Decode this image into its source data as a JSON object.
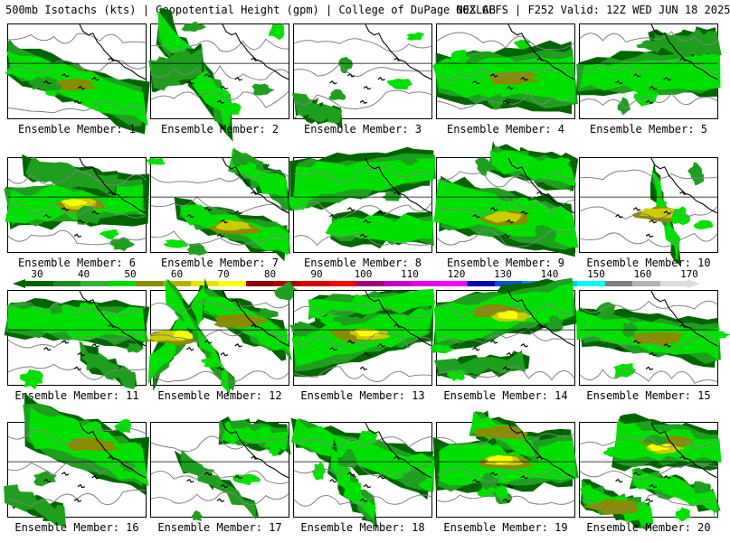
{
  "header": {
    "left": "500mb Isotachs (kts) | Geopotential Height (gpm) | College of DuPage NEXLAB",
    "right": "00Z GEFS | F252 Valid: 12Z WED JUN 18 2025"
  },
  "panels": [
    {
      "label": "Ensemble Member: 1",
      "member": 1
    },
    {
      "label": "Ensemble Member: 2",
      "member": 2
    },
    {
      "label": "Ensemble Member: 3",
      "member": 3
    },
    {
      "label": "Ensemble Member: 4",
      "member": 4
    },
    {
      "label": "Ensemble Member: 5",
      "member": 5
    },
    {
      "label": "Ensemble Member: 6",
      "member": 6
    },
    {
      "label": "Ensemble Member: 7",
      "member": 7
    },
    {
      "label": "Ensemble Member: 8",
      "member": 8
    },
    {
      "label": "Ensemble Member: 9",
      "member": 9
    },
    {
      "label": "Ensemble Member: 10",
      "member": 10
    },
    {
      "label": "Ensemble Member: 11",
      "member": 11
    },
    {
      "label": "Ensemble Member: 12",
      "member": 12
    },
    {
      "label": "Ensemble Member: 13",
      "member": 13
    },
    {
      "label": "Ensemble Member: 14",
      "member": 14
    },
    {
      "label": "Ensemble Member: 15",
      "member": 15
    },
    {
      "label": "Ensemble Member: 16",
      "member": 16
    },
    {
      "label": "Ensemble Member: 17",
      "member": 17
    },
    {
      "label": "Ensemble Member: 18",
      "member": 18
    },
    {
      "label": "Ensemble Member: 19",
      "member": 19
    },
    {
      "label": "Ensemble Member: 20",
      "member": 20
    }
  ],
  "colorbar": {
    "labels": [
      "30",
      "40",
      "50",
      "60",
      "70",
      "80",
      "90",
      "100",
      "110",
      "120",
      "130",
      "140",
      "150",
      "160",
      "170"
    ],
    "colors": [
      "#006400",
      "#1e8c1e",
      "#32b432",
      "#00e000",
      "#8b8b00",
      "#b4b400",
      "#e6e600",
      "#ffff00",
      "#8b0000",
      "#b40000",
      "#dc0000",
      "#ff0000",
      "#a00080",
      "#c800c8",
      "#e600e6",
      "#ff00ff",
      "#0000b4",
      "#0050e6",
      "#0090ff",
      "#00c8ff",
      "#00ffff",
      "#808080",
      "#b4b4b4",
      "#dcdcdc"
    ]
  },
  "map_colors": {
    "c30": "#006400",
    "c40": "#1ea01e",
    "c50": "#32c832",
    "c55": "#00e000",
    "c60": "#8b8b00",
    "c70": "#cccc00",
    "c75": "#ffff00",
    "c80": "#8b0000",
    "c90": "#c00000",
    "height_contour": "#808080",
    "coast": "#000000"
  }
}
